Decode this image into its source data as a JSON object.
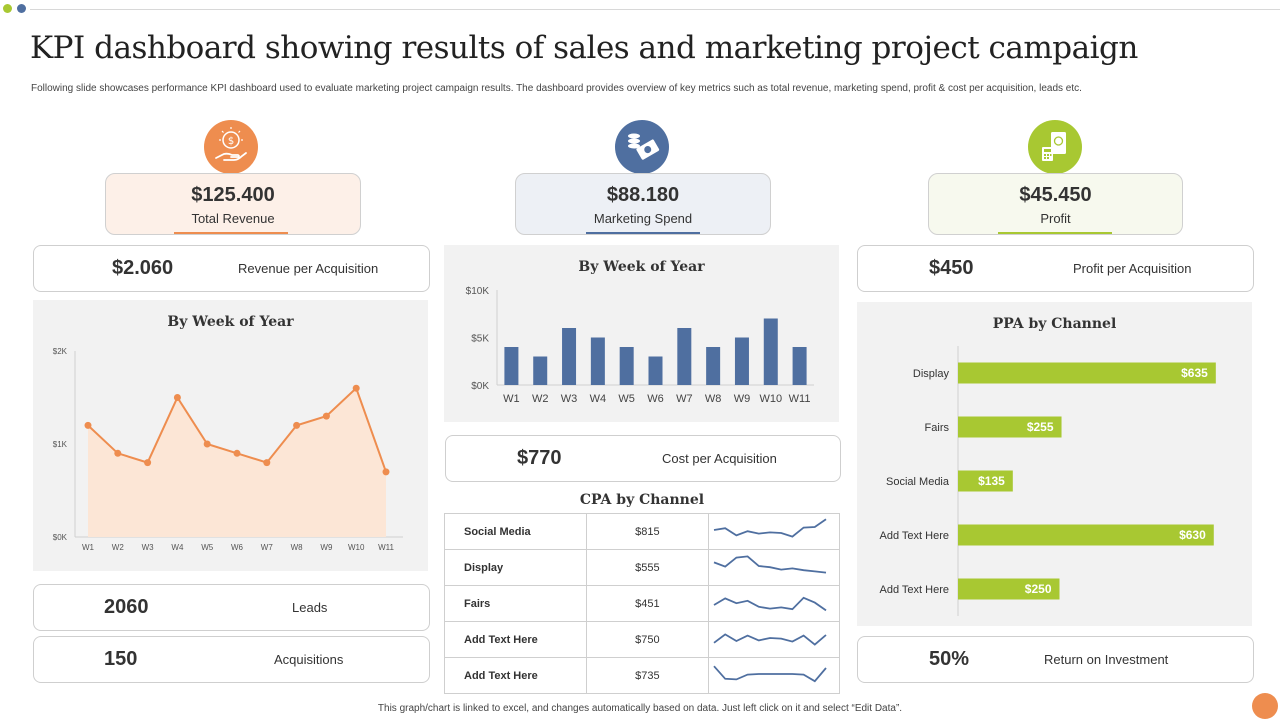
{
  "title": "KPI dashboard showing results of sales and marketing project campaign",
  "subtitle": "Following slide showcases performance KPI dashboard used to evaluate marketing project campaign results. The dashboard provides overview of key metrics such as total revenue, marketing spend, profit & cost per acquisition, leads etc.",
  "colors": {
    "orange": "#ee8d4f",
    "blue": "#4f6fa0",
    "green": "#a8c832",
    "area": "#fce6d6"
  },
  "kpis": [
    {
      "value": "$125.400",
      "label": "Total Revenue",
      "icon": "money-hand-icon"
    },
    {
      "value": "$88.180",
      "label": "Marketing Spend",
      "icon": "coins-cash-icon"
    },
    {
      "value": "$45.450",
      "label": "Profit",
      "icon": "calculator-document-icon"
    }
  ],
  "cards": {
    "rpa": {
      "value": "$2.060",
      "label": "Revenue  per Acquisition"
    },
    "cpa": {
      "value": "$770",
      "label": "Cost per Acquisition"
    },
    "ppa": {
      "value": "$450",
      "label": "Profit per Acquisition"
    },
    "leads": {
      "value": "2060",
      "label": "Leads"
    },
    "acq": {
      "value": "150",
      "label": "Acquisitions"
    },
    "roi": {
      "value": "50%",
      "label": "Return on Investment"
    }
  },
  "footer": "This graph/chart is linked to excel, and changes automatically based on data. Just left click on it and select “Edit Data”.",
  "chart_data": [
    {
      "type": "area",
      "title": "By Week of Year",
      "categories": [
        "W1",
        "W2",
        "W3",
        "W4",
        "W5",
        "W6",
        "W7",
        "W8",
        "W9",
        "W10",
        "W11"
      ],
      "values": [
        1200,
        900,
        800,
        1500,
        1000,
        900,
        800,
        1200,
        1300,
        1600,
        700
      ],
      "yticks": [
        "$0K",
        "$1K",
        "$2K"
      ],
      "ylim": [
        0,
        2000
      ],
      "grid": false
    },
    {
      "type": "bar",
      "title": "By Week of Year",
      "categories": [
        "W1",
        "W2",
        "W3",
        "W4",
        "W5",
        "W6",
        "W7",
        "W8",
        "W9",
        "W10",
        "W11"
      ],
      "values": [
        4000,
        3000,
        6000,
        5000,
        4000,
        3000,
        6000,
        4000,
        5000,
        7000,
        4000
      ],
      "yticks": [
        "$0K",
        "$5K",
        "$10K"
      ],
      "ylim": [
        0,
        10000
      ],
      "grid": false
    },
    {
      "type": "table",
      "title": "CPA by Channel",
      "rows": [
        {
          "channel": "Social Media",
          "value": "$815",
          "trend": [
            5,
            5.3,
            4.1,
            4.8,
            4.4,
            4.6,
            4.5,
            3.9,
            5.4,
            5.5,
            6.8
          ]
        },
        {
          "channel": "Display",
          "value": "$555",
          "trend": [
            5.6,
            4.9,
            6.4,
            6.6,
            5.0,
            4.8,
            4.4,
            4.6,
            4.3,
            4.1,
            3.9
          ]
        },
        {
          "channel": "Fairs",
          "value": "$451",
          "trend": [
            4.5,
            5.6,
            4.8,
            5.2,
            4.2,
            3.9,
            4.1,
            3.8,
            5.7,
            4.9,
            3.6
          ]
        },
        {
          "channel": "Add Text Here",
          "value": "$750",
          "trend": [
            4.2,
            5.6,
            4.5,
            5.4,
            4.6,
            5.0,
            4.9,
            4.4,
            5.4,
            3.9,
            5.5
          ]
        },
        {
          "channel": "Add Text Here",
          "value": "$735",
          "trend": [
            6.3,
            4.2,
            4.1,
            4.9,
            5.0,
            5.0,
            5.0,
            5.0,
            4.9,
            3.8,
            6.0
          ]
        }
      ]
    },
    {
      "type": "bar",
      "orientation": "horizontal",
      "title": "PPA by Channel",
      "categories": [
        "Display",
        "Fairs",
        "Social Media",
        "Add Text Here",
        "Add Text Here"
      ],
      "values": [
        635,
        255,
        135,
        630,
        250
      ],
      "labels": [
        "$635",
        "$255",
        "$135",
        "$630",
        "$250"
      ],
      "xlim": [
        0,
        1000
      ],
      "grid": false
    }
  ]
}
